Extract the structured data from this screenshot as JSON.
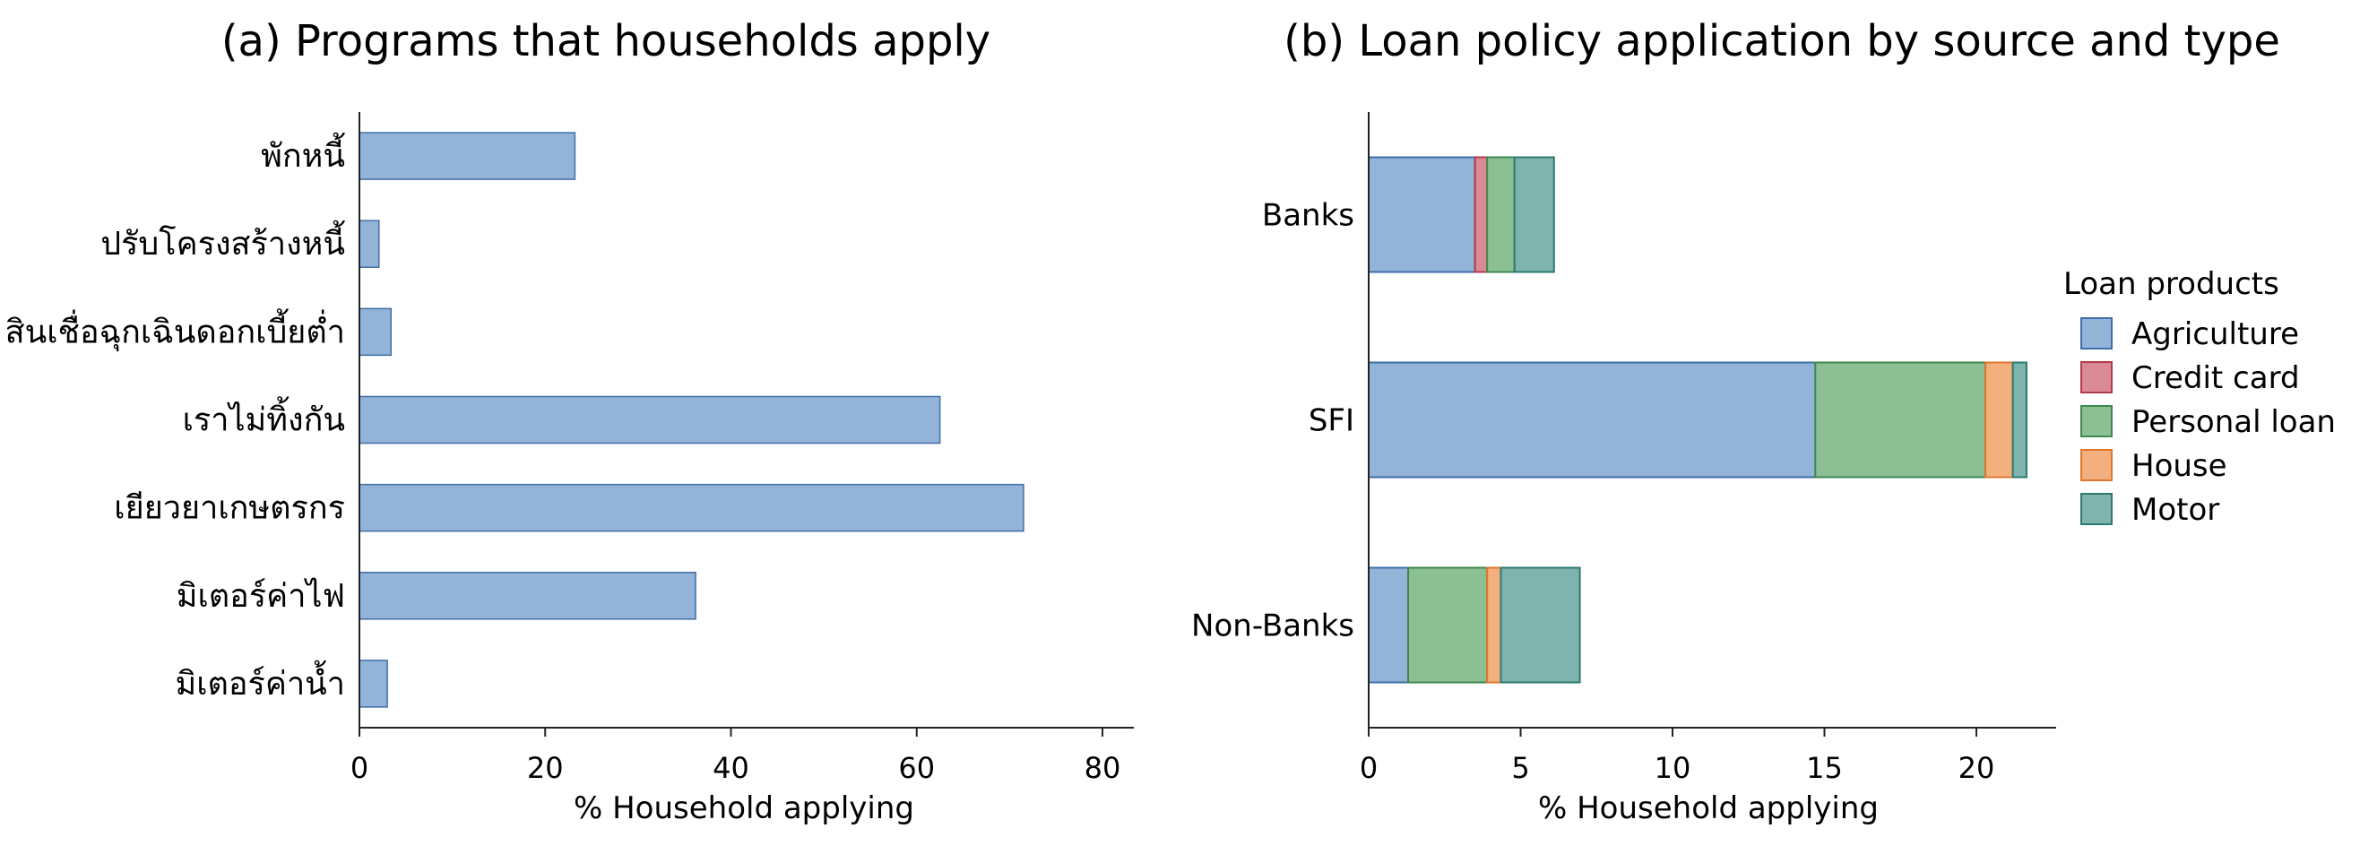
{
  "chart_data": [
    {
      "type": "bar",
      "orientation": "horizontal",
      "title": "(a) Programs that households apply",
      "xlabel": "% Household applying",
      "ylabel": "",
      "xlim": [
        0,
        83
      ],
      "xticks": [
        "0",
        "20",
        "40",
        "60",
        "80"
      ],
      "categories": [
        "พักหนี้",
        "ปรับโครงสร้างหนี้",
        "สินเชื่อฉุกเฉินดอกเบี้ยต่ำ",
        "เราไม่ทิ้งกัน",
        "เยียวยาเกษตรกร",
        "มิเตอร์ค่าไฟ",
        "มิเตอร์ค่าน้ำ"
      ],
      "values": [
        23.2,
        2.1,
        3.4,
        62.5,
        71.5,
        36.2,
        3.0
      ],
      "color": "#93b4d8",
      "edge_color": "#3f6fa8",
      "grid": false
    },
    {
      "type": "bar",
      "orientation": "horizontal",
      "stacked": true,
      "title": "(b) Loan policy application by source and type",
      "xlabel": "% Household applying",
      "ylabel": "",
      "xlim": [
        0,
        22.6
      ],
      "xticks": [
        "0",
        "5",
        "10",
        "15",
        "20"
      ],
      "categories": [
        "Banks",
        "SFI",
        "Non-Banks"
      ],
      "legend_title": "Loan products",
      "legend_position": "right",
      "series": [
        {
          "name": "Agriculture",
          "values": [
            3.5,
            14.7,
            1.3
          ],
          "color": "#93b4d8",
          "edge": "#3f6fa8"
        },
        {
          "name": "Credit card",
          "values": [
            0.4,
            0.0,
            0.0
          ],
          "color": "#d98a95",
          "edge": "#b33a4a"
        },
        {
          "name": "Personal loan",
          "values": [
            0.9,
            5.6,
            2.6
          ],
          "color": "#8dbf94",
          "edge": "#3e8a4d"
        },
        {
          "name": "House",
          "values": [
            0.0,
            0.9,
            0.45
          ],
          "color": "#f3b07e",
          "edge": "#e0762c"
        },
        {
          "name": "Motor",
          "values": [
            1.3,
            0.45,
            2.6
          ],
          "color": "#7fb3ae",
          "edge": "#2e7a72"
        }
      ],
      "grid": false
    }
  ]
}
